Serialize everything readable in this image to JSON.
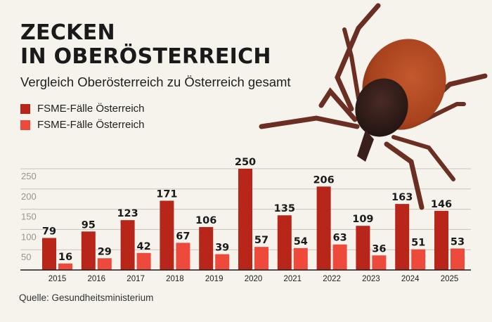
{
  "header": {
    "title_line1": "ZECKEN",
    "title_line2": "IN OBERÖSTERREICH",
    "subtitle": "Vergleich Oberösterreich zu Österreich gesamt"
  },
  "legend": [
    {
      "label": "FSME-Fälle Österreich",
      "color": "#b8261a"
    },
    {
      "label": "FSME-Fälle Österreich",
      "color": "#ee4a3c"
    }
  ],
  "footer": {
    "source": "Quelle: Gesundheitsministerium"
  },
  "image": {
    "subject": "tick-photo"
  },
  "chart_data": {
    "type": "bar",
    "title": "ZECKEN IN OBERÖSTERREICH",
    "subtitle": "Vergleich Oberösterreich zu Österreich gesamt",
    "xlabel": "",
    "ylabel": "",
    "categories": [
      "2015",
      "2016",
      "2017",
      "2018",
      "2019",
      "2020",
      "2021",
      "2022",
      "2023",
      "2024",
      "2025"
    ],
    "series": [
      {
        "name": "FSME-Fälle Österreich",
        "color": "#b8261a",
        "values": [
          79,
          95,
          123,
          171,
          106,
          250,
          135,
          206,
          109,
          163,
          146
        ]
      },
      {
        "name": "FSME-Fälle Österreich",
        "color": "#ee4a3c",
        "values": [
          16,
          29,
          42,
          67,
          39,
          57,
          54,
          63,
          36,
          51,
          53
        ]
      }
    ],
    "ylim": [
      0,
      250
    ],
    "yticks": [
      50,
      100,
      150,
      200,
      250
    ],
    "grid": true,
    "legend_position": "top-left",
    "data_labels": true
  }
}
